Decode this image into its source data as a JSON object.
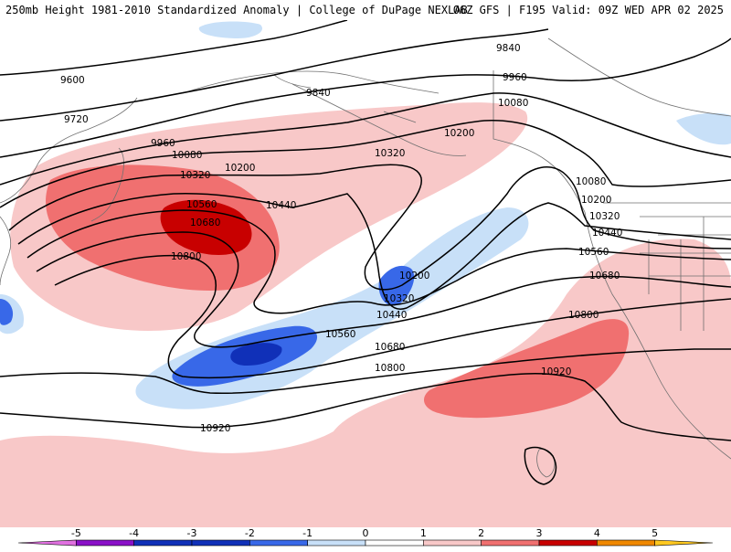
{
  "header": {
    "title": "250mb Height 1981-2010 Standardized Anomaly | College of DuPage NEXLAB",
    "run_info": "06Z GFS | F195 Valid: 09Z WED APR 02 2025"
  },
  "contour_labels": [
    "9600",
    "9720",
    "9840",
    "9840",
    "9960",
    "9960",
    "10080",
    "10080",
    "10080",
    "10200",
    "10200",
    "10200",
    "10200",
    "10320",
    "10320",
    "10320",
    "10320",
    "10440",
    "10440",
    "10440",
    "10560",
    "10560",
    "10560",
    "10680",
    "10680",
    "10680",
    "10800",
    "10800",
    "10800",
    "10920",
    "10920"
  ],
  "colorbar": {
    "labels": [
      "-5",
      "-4",
      "-3",
      "-2",
      "-1",
      "0",
      "1",
      "2",
      "3",
      "4",
      "5"
    ],
    "colors": [
      "#e070e0",
      "#8a10c8",
      "#1030b8",
      "#3868e8",
      "#c8e0f8",
      "#ffffff",
      "#f8c8c8",
      "#f07070",
      "#c80000",
      "#f08800",
      "#ffc820"
    ]
  },
  "anomaly_colors": {
    "light_red": "#f8c8c8",
    "medium_red": "#f07070",
    "dark_red": "#c80000",
    "light_blue": "#c8e0f8",
    "medium_blue": "#3868e8",
    "dark_blue": "#1030b8"
  }
}
